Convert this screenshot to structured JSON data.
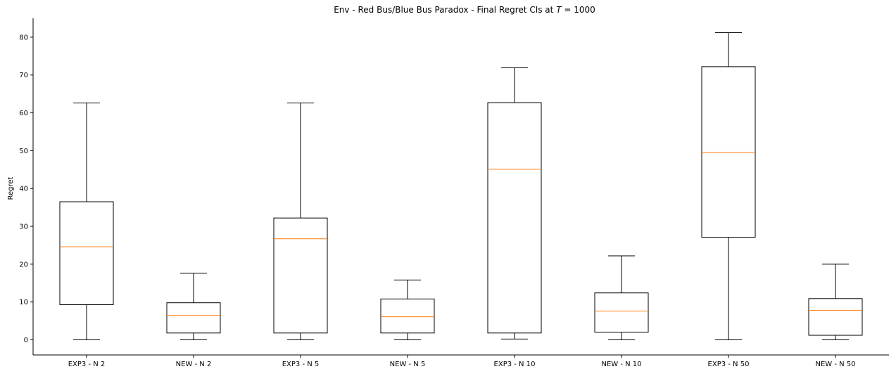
{
  "chart_data": {
    "type": "box",
    "title": "Env - Red Bus/Blue Bus Paradox - Final Regret CIs at T = 1000",
    "title_parts": {
      "prefix": "Env - Red Bus/Blue Bus Paradox - Final Regret CIs at ",
      "var": "T",
      "suffix": " = 1000"
    },
    "xlabel": "",
    "ylabel": "Regret",
    "ylim": [
      -4,
      85
    ],
    "yticks": [
      0,
      10,
      20,
      30,
      40,
      50,
      60,
      70,
      80
    ],
    "categories": [
      "EXP3 - N 2",
      "NEW - N 2",
      "EXP3 - N 5",
      "NEW - N 5",
      "EXP3 - N 10",
      "NEW - N 10",
      "EXP3 - N 50",
      "NEW - N 50"
    ],
    "boxes": [
      {
        "whisker_low": 0.0,
        "q1": 9.3,
        "median": 24.6,
        "q3": 36.5,
        "whisker_high": 62.6
      },
      {
        "whisker_low": 0.0,
        "q1": 1.8,
        "median": 6.5,
        "q3": 9.8,
        "whisker_high": 17.6
      },
      {
        "whisker_low": 0.0,
        "q1": 1.8,
        "median": 26.7,
        "q3": 32.2,
        "whisker_high": 62.6
      },
      {
        "whisker_low": 0.0,
        "q1": 1.8,
        "median": 6.1,
        "q3": 10.8,
        "whisker_high": 15.8
      },
      {
        "whisker_low": 0.2,
        "q1": 1.8,
        "median": 45.1,
        "q3": 62.7,
        "whisker_high": 71.9
      },
      {
        "whisker_low": 0.0,
        "q1": 2.0,
        "median": 7.6,
        "q3": 12.4,
        "whisker_high": 22.2
      },
      {
        "whisker_low": 0.0,
        "q1": 27.1,
        "median": 49.5,
        "q3": 72.2,
        "whisker_high": 81.2
      },
      {
        "whisker_low": 0.0,
        "q1": 1.2,
        "median": 7.8,
        "q3": 10.9,
        "whisker_high": 20.0
      }
    ],
    "colors": {
      "box": "#000000",
      "median": "#ff7f0e"
    },
    "grid": false,
    "legend": "none"
  }
}
